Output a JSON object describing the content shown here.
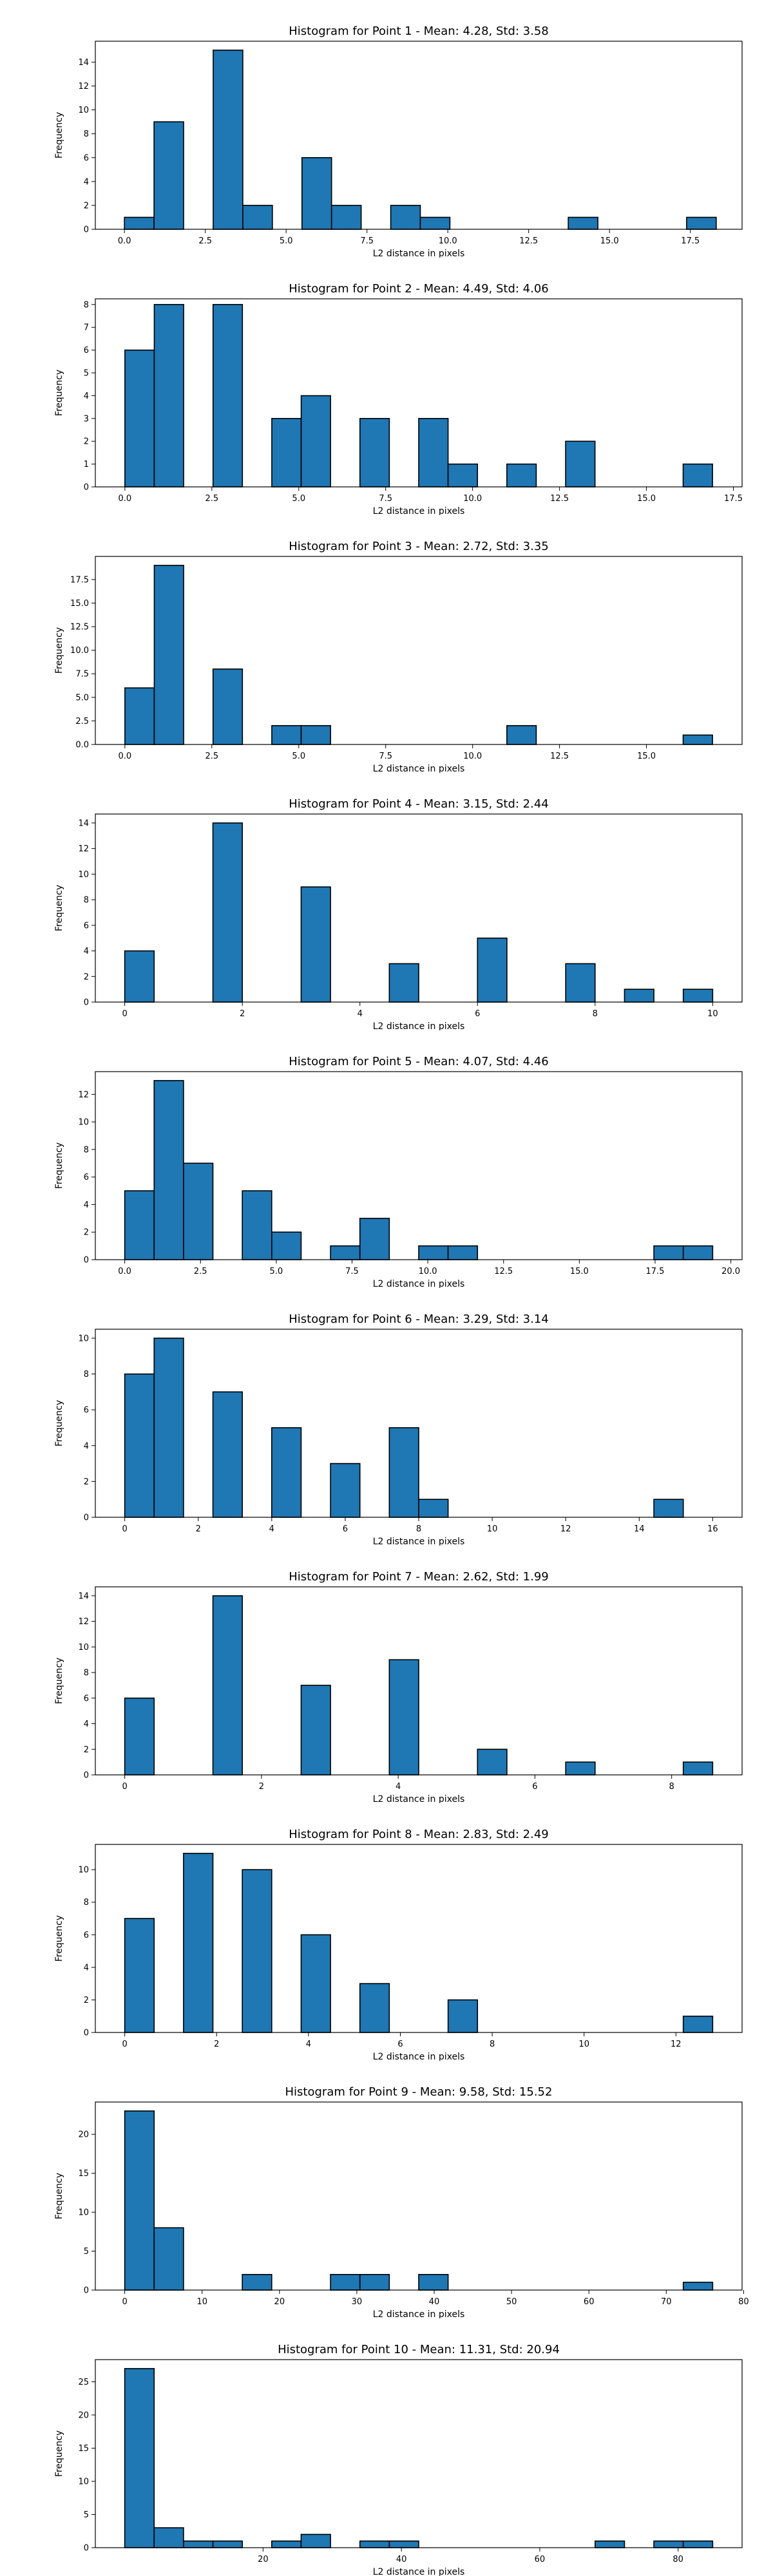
{
  "chart_data": [
    {
      "type": "bar",
      "title": "Histogram for Point 1 - Mean: 4.28, Std: 3.58",
      "xlabel": "L2 distance in pixels",
      "ylabel": "Frequency",
      "xlim": [
        -0.9,
        19.1
      ],
      "ylim": [
        0,
        15.75
      ],
      "xticks": [
        0,
        2.5,
        5,
        7.5,
        10,
        12.5,
        15,
        17.5
      ],
      "xtick_labels": [
        "0.0",
        "2.5",
        "5.0",
        "7.5",
        "10.0",
        "12.5",
        "15.0",
        "17.5"
      ],
      "yticks": [
        0,
        2,
        4,
        6,
        8,
        10,
        12,
        14
      ],
      "ytick_labels": [
        "0",
        "2",
        "4",
        "6",
        "8",
        "10",
        "12",
        "14"
      ],
      "bin_edges": [
        0,
        0.915,
        1.83,
        2.745,
        3.66,
        4.575,
        5.49,
        6.405,
        7.32,
        8.235,
        9.15,
        10.065,
        10.98,
        11.895,
        12.81,
        13.725,
        14.64,
        15.555,
        16.47,
        17.385,
        18.3
      ],
      "values": [
        1,
        9,
        0,
        15,
        2,
        0,
        6,
        2,
        0,
        2,
        1,
        0,
        0,
        0,
        0,
        1,
        0,
        0,
        0,
        1
      ]
    },
    {
      "type": "bar",
      "title": "Histogram for Point 2 - Mean: 4.49, Std: 4.06",
      "xlabel": "L2 distance in pixels",
      "ylabel": "Frequency",
      "xlim": [
        -0.85,
        17.75
      ],
      "ylim": [
        0,
        8.25
      ],
      "xticks": [
        0,
        2.5,
        5,
        7.5,
        10,
        12.5,
        15,
        17.5
      ],
      "xtick_labels": [
        "0.0",
        "2.5",
        "5.0",
        "7.5",
        "10.0",
        "12.5",
        "15.0",
        "17.5"
      ],
      "yticks": [
        0,
        1,
        2,
        3,
        4,
        5,
        6,
        7,
        8
      ],
      "ytick_labels": [
        "0",
        "1",
        "2",
        "3",
        "4",
        "5",
        "6",
        "7",
        "8"
      ],
      "bin_edges": [
        0,
        0.845,
        1.69,
        2.535,
        3.38,
        4.225,
        5.07,
        5.915,
        6.76,
        7.605,
        8.45,
        9.295,
        10.14,
        10.985,
        11.83,
        12.675,
        13.52,
        14.365,
        15.21,
        16.055,
        16.9
      ],
      "values": [
        6,
        8,
        0,
        8,
        0,
        3,
        4,
        0,
        3,
        0,
        3,
        1,
        0,
        1,
        0,
        2,
        0,
        0,
        0,
        1
      ]
    },
    {
      "type": "bar",
      "title": "Histogram for Point 3 - Mean: 2.72, Std: 3.35",
      "xlabel": "L2 distance in pixels",
      "ylabel": "Frequency",
      "xlim": [
        -0.85,
        17.75
      ],
      "ylim": [
        0,
        19.95
      ],
      "xticks": [
        0,
        2.5,
        5,
        7.5,
        10,
        12.5,
        15
      ],
      "xtick_labels": [
        "0.0",
        "2.5",
        "5.0",
        "7.5",
        "10.0",
        "12.5",
        "15.0"
      ],
      "yticks": [
        0,
        2.5,
        5,
        7.5,
        10,
        12.5,
        15,
        17.5
      ],
      "ytick_labels": [
        "0.0",
        "2.5",
        "5.0",
        "7.5",
        "10.0",
        "12.5",
        "15.0",
        "17.5"
      ],
      "bin_edges": [
        0,
        0.845,
        1.69,
        2.535,
        3.38,
        4.225,
        5.07,
        5.915,
        6.76,
        7.605,
        8.45,
        9.295,
        10.14,
        10.985,
        11.83,
        12.675,
        13.52,
        14.365,
        15.21,
        16.055,
        16.9
      ],
      "values": [
        6,
        19,
        0,
        8,
        0,
        2,
        2,
        0,
        0,
        0,
        0,
        0,
        0,
        2,
        0,
        0,
        0,
        0,
        0,
        1
      ]
    },
    {
      "type": "bar",
      "title": "Histogram for Point 4 - Mean: 3.15, Std: 2.44",
      "xlabel": "L2 distance in pixels",
      "ylabel": "Frequency",
      "xlim": [
        -0.5,
        10.5
      ],
      "ylim": [
        0,
        14.7
      ],
      "xticks": [
        0,
        2,
        4,
        6,
        8,
        10
      ],
      "xtick_labels": [
        "0",
        "2",
        "4",
        "6",
        "8",
        "10"
      ],
      "yticks": [
        0,
        2,
        4,
        6,
        8,
        10,
        12,
        14
      ],
      "ytick_labels": [
        "0",
        "2",
        "4",
        "6",
        "8",
        "10",
        "12",
        "14"
      ],
      "bin_edges": [
        0,
        0.5,
        1,
        1.5,
        2,
        2.5,
        3,
        3.5,
        4,
        4.5,
        5,
        5.5,
        6,
        6.5,
        7,
        7.5,
        8,
        8.5,
        9,
        9.5,
        10
      ],
      "values": [
        4,
        0,
        0,
        14,
        0,
        0,
        9,
        0,
        0,
        3,
        0,
        0,
        5,
        0,
        0,
        3,
        0,
        1,
        0,
        1
      ]
    },
    {
      "type": "bar",
      "title": "Histogram for Point 5 - Mean: 4.07, Std: 4.46",
      "xlabel": "L2 distance in pixels",
      "ylabel": "Frequency",
      "xlim": [
        -0.97,
        20.37
      ],
      "ylim": [
        0,
        13.65
      ],
      "xticks": [
        0,
        2.5,
        5,
        7.5,
        10,
        12.5,
        15,
        17.5,
        20
      ],
      "xtick_labels": [
        "0.0",
        "2.5",
        "5.0",
        "7.5",
        "10.0",
        "12.5",
        "15.0",
        "17.5",
        "20.0"
      ],
      "yticks": [
        0,
        2,
        4,
        6,
        8,
        10,
        12
      ],
      "ytick_labels": [
        "0",
        "2",
        "4",
        "6",
        "8",
        "10",
        "12"
      ],
      "bin_edges": [
        0,
        0.97,
        1.94,
        2.91,
        3.88,
        4.85,
        5.82,
        6.79,
        7.76,
        8.73,
        9.7,
        10.67,
        11.64,
        12.61,
        13.58,
        14.55,
        15.52,
        16.49,
        17.46,
        18.43,
        19.4
      ],
      "values": [
        5,
        13,
        7,
        0,
        5,
        2,
        0,
        1,
        3,
        0,
        1,
        1,
        0,
        0,
        0,
        0,
        0,
        0,
        1,
        1
      ]
    },
    {
      "type": "bar",
      "title": "Histogram for Point 6 - Mean: 3.29, Std: 3.14",
      "xlabel": "L2 distance in pixels",
      "ylabel": "Frequency",
      "xlim": [
        -0.8,
        16.8
      ],
      "ylim": [
        0,
        10.5
      ],
      "xticks": [
        0,
        2,
        4,
        6,
        8,
        10,
        12,
        14,
        16
      ],
      "xtick_labels": [
        "0",
        "2",
        "4",
        "6",
        "8",
        "10",
        "12",
        "14",
        "16"
      ],
      "yticks": [
        0,
        2,
        4,
        6,
        8,
        10
      ],
      "ytick_labels": [
        "0",
        "2",
        "4",
        "6",
        "8",
        "10"
      ],
      "bin_edges": [
        0,
        0.8,
        1.6,
        2.4,
        3.2,
        4,
        4.8,
        5.6,
        6.4,
        7.2,
        8,
        8.8,
        9.6,
        10.4,
        11.2,
        12,
        12.8,
        13.6,
        14.4,
        15.2,
        16
      ],
      "values": [
        8,
        10,
        0,
        7,
        0,
        5,
        0,
        3,
        0,
        5,
        1,
        0,
        0,
        0,
        0,
        0,
        0,
        0,
        1,
        0
      ]
    },
    {
      "type": "bar",
      "title": "Histogram for Point 7 - Mean: 2.62, Std: 1.99",
      "xlabel": "L2 distance in pixels",
      "ylabel": "Frequency",
      "xlim": [
        -0.43,
        9.03
      ],
      "ylim": [
        0,
        14.7
      ],
      "xticks": [
        0,
        2,
        4,
        6,
        8
      ],
      "xtick_labels": [
        "0",
        "2",
        "4",
        "6",
        "8"
      ],
      "yticks": [
        0,
        2,
        4,
        6,
        8,
        10,
        12,
        14
      ],
      "ytick_labels": [
        "0",
        "2",
        "4",
        "6",
        "8",
        "10",
        "12",
        "14"
      ],
      "bin_edges": [
        0,
        0.43,
        0.86,
        1.29,
        1.72,
        2.15,
        2.58,
        3.01,
        3.44,
        3.87,
        4.3,
        4.73,
        5.16,
        5.59,
        6.02,
        6.45,
        6.88,
        7.31,
        7.74,
        8.17,
        8.6
      ],
      "values": [
        6,
        0,
        0,
        14,
        0,
        0,
        7,
        0,
        0,
        9,
        0,
        0,
        2,
        0,
        0,
        1,
        0,
        0,
        0,
        1
      ]
    },
    {
      "type": "bar",
      "title": "Histogram for Point 8 - Mean: 2.83, Std: 2.49",
      "xlabel": "L2 distance in pixels",
      "ylabel": "Frequency",
      "xlim": [
        -0.64,
        13.44
      ],
      "ylim": [
        0,
        11.55
      ],
      "xticks": [
        0,
        2,
        4,
        6,
        8,
        10,
        12
      ],
      "xtick_labels": [
        "0",
        "2",
        "4",
        "6",
        "8",
        "10",
        "12"
      ],
      "yticks": [
        0,
        2,
        4,
        6,
        8,
        10
      ],
      "ytick_labels": [
        "0",
        "2",
        "4",
        "6",
        "8",
        "10"
      ],
      "bin_edges": [
        0,
        0.64,
        1.28,
        1.92,
        2.56,
        3.2,
        3.84,
        4.48,
        5.12,
        5.76,
        6.4,
        7.04,
        7.68,
        8.32,
        8.96,
        9.6,
        10.24,
        10.88,
        11.52,
        12.16,
        12.8
      ],
      "values": [
        7,
        0,
        11,
        0,
        10,
        0,
        6,
        0,
        3,
        0,
        0,
        2,
        0,
        0,
        0,
        0,
        0,
        0,
        0,
        1
      ]
    },
    {
      "type": "bar",
      "title": "Histogram for Point 9 - Mean: 9.58, Std: 15.52",
      "xlabel": "L2 distance in pixels",
      "ylabel": "Frequency",
      "xlim": [
        -3.8,
        79.8
      ],
      "ylim": [
        0,
        24.15
      ],
      "xticks": [
        0,
        10,
        20,
        30,
        40,
        50,
        60,
        70,
        80
      ],
      "xtick_labels": [
        "0",
        "10",
        "20",
        "30",
        "40",
        "50",
        "60",
        "70",
        "80"
      ],
      "yticks": [
        0,
        5,
        10,
        15,
        20
      ],
      "ytick_labels": [
        "0",
        "5",
        "10",
        "15",
        "20"
      ],
      "bin_edges": [
        0,
        3.8,
        7.6,
        11.4,
        15.2,
        19,
        22.8,
        26.6,
        30.4,
        34.2,
        38,
        41.8,
        45.6,
        49.4,
        53.2,
        57,
        60.8,
        64.6,
        68.4,
        72.2,
        76
      ],
      "values": [
        23,
        8,
        0,
        0,
        2,
        0,
        0,
        2,
        2,
        0,
        2,
        0,
        0,
        0,
        0,
        0,
        0,
        0,
        0,
        1
      ]
    },
    {
      "type": "bar",
      "title": "Histogram for Point 10 - Mean: 11.31, Std: 20.94",
      "xlabel": "L2 distance in pixels",
      "ylabel": "Frequency",
      "xlim": [
        -4.25,
        89.25
      ],
      "ylim": [
        0,
        28.35
      ],
      "xticks": [
        20,
        40,
        60,
        80
      ],
      "xtick_labels": [
        "20",
        "40",
        "60",
        "80"
      ],
      "yticks": [
        0,
        5,
        10,
        15,
        20,
        25
      ],
      "ytick_labels": [
        "0",
        "5",
        "10",
        "15",
        "20",
        "25"
      ],
      "bin_edges": [
        0,
        4.25,
        8.5,
        12.75,
        17,
        21.25,
        25.5,
        29.75,
        34,
        38.25,
        42.5,
        46.75,
        51,
        55.25,
        59.5,
        63.75,
        68,
        72.25,
        76.5,
        80.75,
        85
      ],
      "values": [
        27,
        3,
        1,
        1,
        0,
        1,
        2,
        0,
        1,
        1,
        0,
        0,
        0,
        0,
        0,
        0,
        1,
        0,
        1,
        1
      ]
    }
  ]
}
